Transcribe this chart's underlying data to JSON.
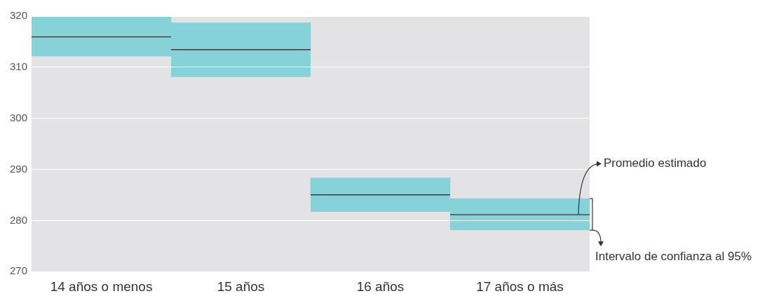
{
  "chart_data": {
    "type": "bar",
    "categories": [
      "14 años o menos",
      "15 años",
      "16 años",
      "17 años o más"
    ],
    "series": [
      {
        "color": "#86d2d9",
        "base": [
          312.1,
          308.1,
          281.7,
          278.1
        ],
        "values": [
          3.9,
          5.4,
          3.4,
          3.1
        ]
      },
      {
        "color": "#86d2d9",
        "base": [
          316.0,
          313.5,
          285.1,
          281.2
        ],
        "values": [
          4.0,
          5.2,
          3.2,
          3.1
        ]
      }
    ],
    "ylim": [
      270,
      320
    ],
    "yticks": [
      270,
      280,
      290,
      300,
      310,
      320
    ],
    "grid": "y",
    "legend": false,
    "annotations": [
      "Promedio estimado",
      "Intervalo de confianza al 95%"
    ]
  }
}
